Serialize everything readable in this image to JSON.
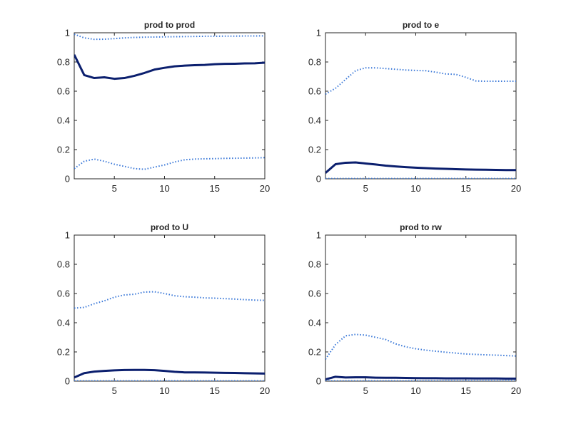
{
  "colors": {
    "background": "#ffffff",
    "axes": "#262626",
    "main_line": "#0b1f6e",
    "band_line": "#3a78d8"
  },
  "chart_data": [
    {
      "type": "line",
      "title": "prod to prod",
      "xlabel": "",
      "ylabel": "",
      "xlim": [
        1,
        20
      ],
      "ylim": [
        0,
        1
      ],
      "xticks": [
        5,
        10,
        15,
        20
      ],
      "yticks": [
        0,
        0.2,
        0.4,
        0.6,
        0.8,
        1
      ],
      "x": [
        1,
        2,
        3,
        4,
        5,
        6,
        7,
        8,
        9,
        10,
        11,
        12,
        13,
        14,
        15,
        16,
        17,
        18,
        19,
        20
      ],
      "series": [
        {
          "style": "solid",
          "values": [
            0.85,
            0.71,
            0.69,
            0.695,
            0.685,
            0.69,
            0.705,
            0.725,
            0.748,
            0.76,
            0.77,
            0.775,
            0.778,
            0.78,
            0.785,
            0.787,
            0.788,
            0.79,
            0.791,
            0.795
          ]
        },
        {
          "style": "dotted",
          "values": [
            0.99,
            0.965,
            0.955,
            0.956,
            0.96,
            0.965,
            0.968,
            0.97,
            0.971,
            0.972,
            0.973,
            0.974,
            0.975,
            0.976,
            0.976,
            0.977,
            0.977,
            0.978,
            0.978,
            0.979
          ]
        },
        {
          "style": "dotted",
          "values": [
            0.07,
            0.12,
            0.135,
            0.12,
            0.1,
            0.085,
            0.07,
            0.065,
            0.08,
            0.095,
            0.115,
            0.13,
            0.135,
            0.137,
            0.138,
            0.14,
            0.141,
            0.142,
            0.143,
            0.145
          ]
        }
      ]
    },
    {
      "type": "line",
      "title": "prod to e",
      "xlabel": "",
      "ylabel": "",
      "xlim": [
        1,
        20
      ],
      "ylim": [
        0,
        1
      ],
      "xticks": [
        5,
        10,
        15,
        20
      ],
      "yticks": [
        0,
        0.2,
        0.4,
        0.6,
        0.8,
        1
      ],
      "x": [
        1,
        2,
        3,
        4,
        5,
        6,
        7,
        8,
        9,
        10,
        11,
        12,
        13,
        14,
        15,
        16,
        17,
        18,
        19,
        20
      ],
      "series": [
        {
          "style": "solid",
          "values": [
            0.04,
            0.1,
            0.11,
            0.112,
            0.105,
            0.098,
            0.09,
            0.085,
            0.08,
            0.076,
            0.073,
            0.07,
            0.068,
            0.066,
            0.064,
            0.063,
            0.062,
            0.061,
            0.06,
            0.06
          ]
        },
        {
          "style": "dotted",
          "values": [
            0.58,
            0.62,
            0.68,
            0.74,
            0.76,
            0.76,
            0.755,
            0.75,
            0.745,
            0.742,
            0.74,
            0.73,
            0.718,
            0.715,
            0.695,
            0.67,
            0.668,
            0.668,
            0.668,
            0.668
          ]
        },
        {
          "style": "dotted",
          "values": [
            0.002,
            0.002,
            0.002,
            0.002,
            0.002,
            0.002,
            0.002,
            0.002,
            0.002,
            0.002,
            0.002,
            0.002,
            0.002,
            0.002,
            0.002,
            0.002,
            0.002,
            0.002,
            0.002,
            0.002
          ]
        }
      ]
    },
    {
      "type": "line",
      "title": "prod to U",
      "xlabel": "",
      "ylabel": "",
      "xlim": [
        1,
        20
      ],
      "ylim": [
        0,
        1
      ],
      "xticks": [
        5,
        10,
        15,
        20
      ],
      "yticks": [
        0,
        0.2,
        0.4,
        0.6,
        0.8,
        1
      ],
      "x": [
        1,
        2,
        3,
        4,
        5,
        6,
        7,
        8,
        9,
        10,
        11,
        12,
        13,
        14,
        15,
        16,
        17,
        18,
        19,
        20
      ],
      "series": [
        {
          "style": "solid",
          "values": [
            0.025,
            0.055,
            0.065,
            0.07,
            0.074,
            0.076,
            0.077,
            0.077,
            0.075,
            0.07,
            0.064,
            0.06,
            0.06,
            0.059,
            0.058,
            0.057,
            0.056,
            0.054,
            0.053,
            0.052
          ]
        },
        {
          "style": "dotted",
          "values": [
            0.5,
            0.505,
            0.53,
            0.55,
            0.575,
            0.59,
            0.595,
            0.61,
            0.612,
            0.6,
            0.585,
            0.578,
            0.575,
            0.57,
            0.568,
            0.565,
            0.562,
            0.558,
            0.555,
            0.553
          ]
        },
        {
          "style": "dotted",
          "values": [
            0.002,
            0.002,
            0.002,
            0.002,
            0.002,
            0.002,
            0.002,
            0.002,
            0.002,
            0.002,
            0.002,
            0.002,
            0.002,
            0.002,
            0.002,
            0.002,
            0.002,
            0.002,
            0.002,
            0.002
          ]
        }
      ]
    },
    {
      "type": "line",
      "title": "prod to rw",
      "xlabel": "",
      "ylabel": "",
      "xlim": [
        1,
        20
      ],
      "ylim": [
        0,
        1
      ],
      "xticks": [
        5,
        10,
        15,
        20
      ],
      "yticks": [
        0,
        0.2,
        0.4,
        0.6,
        0.8,
        1
      ],
      "x": [
        1,
        2,
        3,
        4,
        5,
        6,
        7,
        8,
        9,
        10,
        11,
        12,
        13,
        14,
        15,
        16,
        17,
        18,
        19,
        20
      ],
      "series": [
        {
          "style": "solid",
          "values": [
            0.012,
            0.03,
            0.025,
            0.026,
            0.026,
            0.024,
            0.023,
            0.023,
            0.022,
            0.021,
            0.02,
            0.02,
            0.019,
            0.019,
            0.019,
            0.018,
            0.018,
            0.018,
            0.017,
            0.017
          ]
        },
        {
          "style": "dotted",
          "values": [
            0.15,
            0.25,
            0.31,
            0.32,
            0.315,
            0.3,
            0.285,
            0.255,
            0.235,
            0.222,
            0.212,
            0.205,
            0.198,
            0.192,
            0.186,
            0.183,
            0.18,
            0.178,
            0.175,
            0.172
          ]
        },
        {
          "style": "dotted",
          "values": [
            0.002,
            0.002,
            0.002,
            0.002,
            0.002,
            0.002,
            0.002,
            0.002,
            0.002,
            0.002,
            0.002,
            0.002,
            0.002,
            0.002,
            0.002,
            0.002,
            0.002,
            0.002,
            0.002,
            0.002
          ]
        }
      ]
    }
  ]
}
